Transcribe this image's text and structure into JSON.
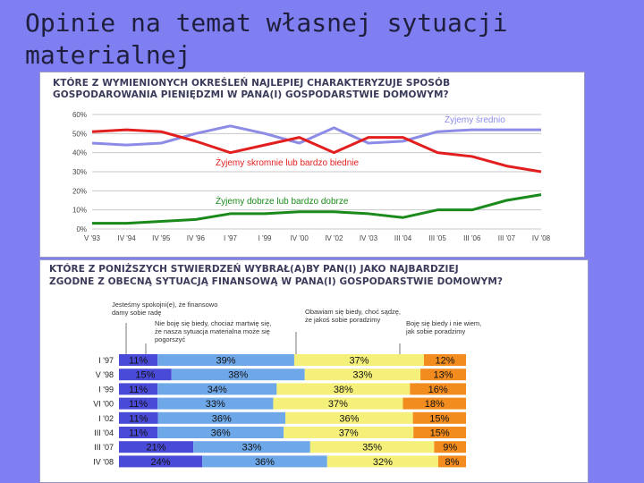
{
  "slide": {
    "title": "Opinie na temat własnej sytuacji materialnej",
    "bg_color": "#7f7ff2"
  },
  "chart_data": [
    {
      "type": "line",
      "title": "KTÓRE Z WYMIENIONYCH OKREŚLEŃ NAJLEPIEJ CHARAKTERYZUJE SPOSÓB GOSPODAROWANIA PIENIĘDZMI W PANA(I) GOSPODARSTWIE DOMOWYM?",
      "title_lines": [
        "KTÓRE Z WYMIENIONYCH OKREŚLEŃ NAJLEPIEJ CHARAKTERYZUJE SPOSÓB",
        "GOSPODAROWANIA PIENIĘDZMI W PANA(I) GOSPODARSTWIE DOMOWYM?"
      ],
      "x_labels": [
        "V '93",
        "IV '94",
        "IV '95",
        "IV '96",
        "I '97",
        "I '99",
        "IV '00",
        "IV '02",
        "IV '03",
        "III '04",
        "III '05",
        "III '06",
        "III '07",
        "IV '08"
      ],
      "y_ticks": [
        "0%",
        "10%",
        "20%",
        "30%",
        "40%",
        "50%",
        "60%"
      ],
      "ylim": [
        0,
        60
      ],
      "grid": true,
      "series": [
        {
          "name": "Żyjemy średnio",
          "color": "#8c8ce6",
          "values": [
            45,
            44,
            45,
            50,
            54,
            50,
            45,
            53,
            45,
            46,
            51,
            52,
            52,
            52
          ]
        },
        {
          "name": "Żyjemy skromnie lub bardzo biednie",
          "color": "#e21e1e",
          "values": [
            51,
            52,
            51,
            46,
            40,
            44,
            48,
            40,
            48,
            48,
            40,
            38,
            33,
            30
          ]
        },
        {
          "name": "Żyjemy dobrze lub bardzo dobrze",
          "color": "#1a8a1a",
          "values": [
            3,
            3,
            4,
            5,
            8,
            8,
            9,
            9,
            8,
            6,
            10,
            10,
            15,
            18
          ]
        }
      ]
    },
    {
      "type": "bar",
      "stacked": true,
      "orientation": "horizontal",
      "title": "KTÓRE Z PONIŻSZYCH STWIERDZEŃ WYBRAŁ(A)BY PAN(I) JAKO NAJBARDZIEJ ZGODNE Z OBECNĄ SYTUACJĄ FINANSOWĄ W PANA(I) GOSPODARSTWIE DOMOWYM?",
      "title_lines": [
        "KTÓRE Z PONIŻSZYCH STWIERDZEŃ WYBRAŁ(A)BY PAN(I) JAKO NAJBARDZIEJ",
        "ZGODNE Z OBECNĄ SYTUACJĄ FINANSOWĄ W PANA(I) GOSPODARSTWIE DOMOWYM?"
      ],
      "categories": [
        "I '97",
        "V '98",
        "I '99",
        "VI '00",
        "I '02",
        "III '04",
        "III '07",
        "IV '08"
      ],
      "series": [
        {
          "name": "Jesteśmy spokojni(e), ze finansowo damy sobie radę",
          "label_lines": [
            "Jesteśmy spokojni(e), że finansowo",
            "damy sobie radę"
          ],
          "color": "#4a4ad8",
          "values": [
            11,
            15,
            11,
            11,
            11,
            11,
            21,
            24
          ]
        },
        {
          "name": "Nie boję się biedy, chociaż martwię się, że nasza sytuacja materialna może się pogorszyć",
          "label_lines": [
            "Nie boję się biedy, chociaż martwię się,",
            "że nasza sytuacja materialna może się",
            "pogorszyć"
          ],
          "color": "#6fa8e8",
          "values": [
            39,
            38,
            34,
            33,
            36,
            36,
            33,
            36
          ]
        },
        {
          "name": "Obawiam się biedy, choć sądzę, że jakoś sobie poradzimy",
          "label_lines": [
            "Obawiam się biedy, choć sądzę,",
            "że jakoś sobie poradzimy"
          ],
          "color": "#f5f07a",
          "values": [
            37,
            33,
            38,
            37,
            36,
            37,
            35,
            32
          ]
        },
        {
          "name": "Boję się biedy i nie wiem, jak sobie poradzimy",
          "label_lines": [
            "Boję się biedy i nie wiem,",
            "jak sobie poradzimy"
          ],
          "color": "#f28c1e",
          "values": [
            12,
            13,
            16,
            18,
            15,
            15,
            9,
            8
          ]
        }
      ]
    }
  ]
}
